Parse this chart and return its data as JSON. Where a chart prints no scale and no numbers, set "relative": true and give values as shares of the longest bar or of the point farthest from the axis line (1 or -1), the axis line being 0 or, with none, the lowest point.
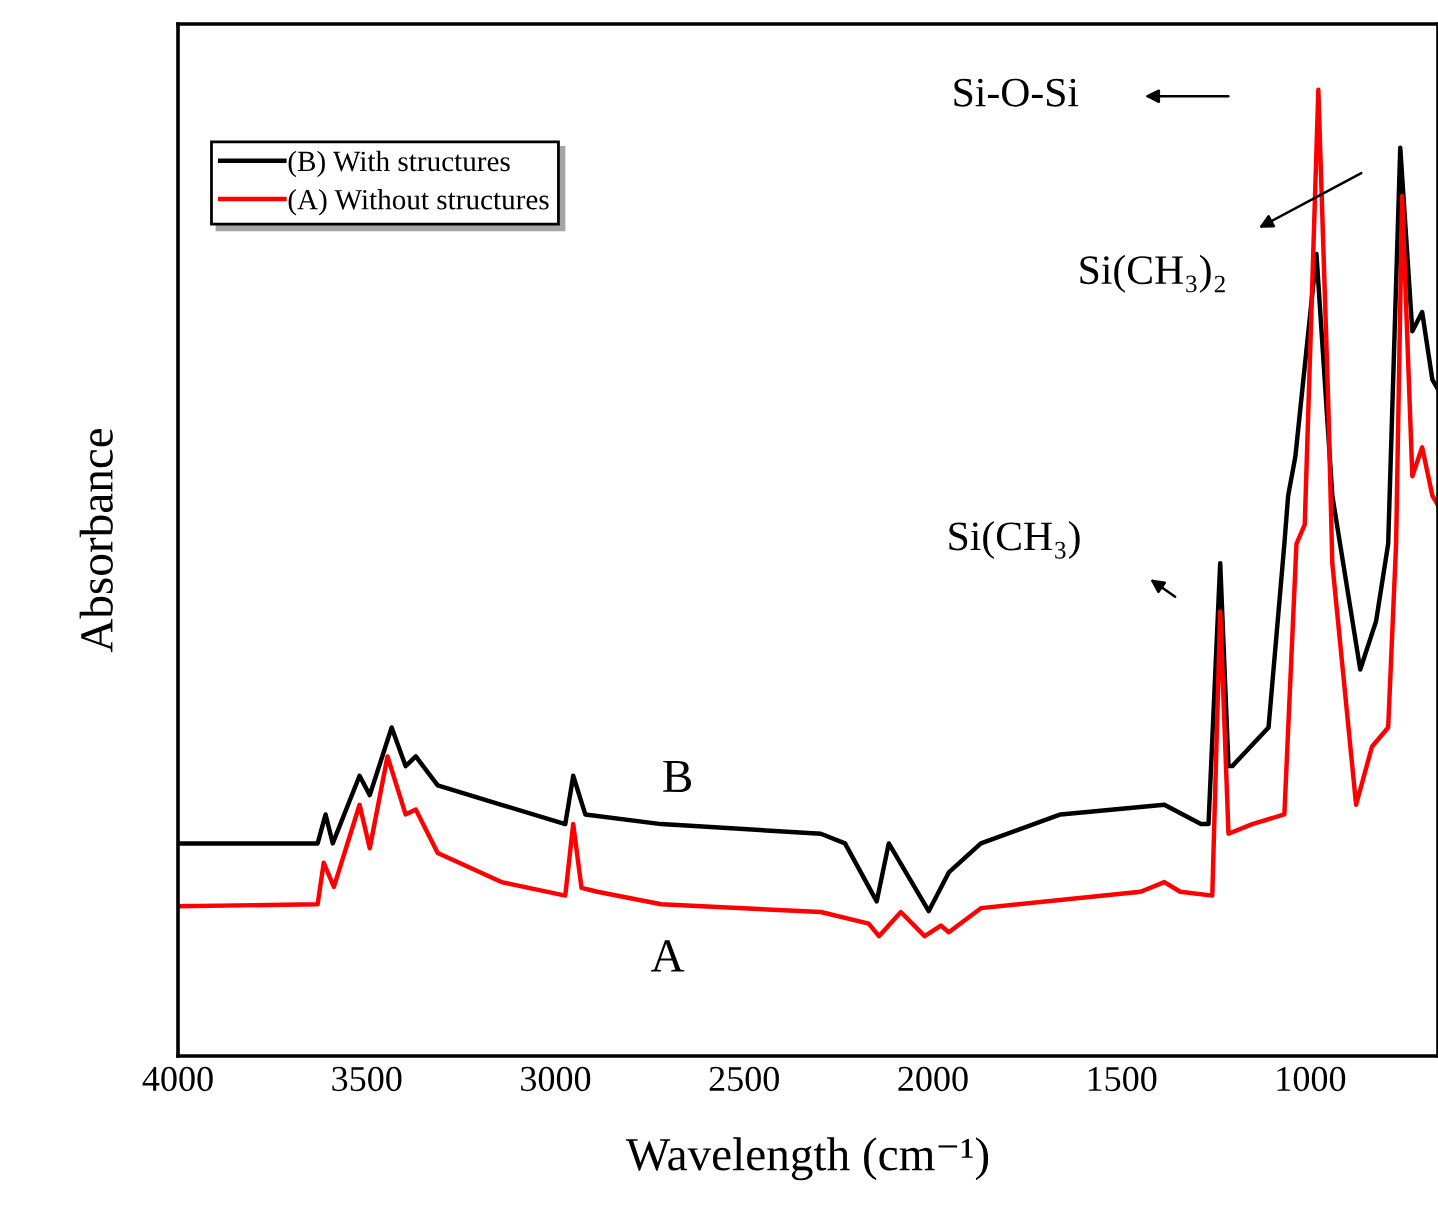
{
  "chart_data": {
    "type": "line",
    "relative": true,
    "xlabel": "Wavelength (cm⁻¹)",
    "ylabel": "Absorbance",
    "xlim": [
      4000,
      662
    ],
    "xticks": [
      4000,
      3500,
      3000,
      2500,
      2000,
      1500,
      1000
    ],
    "legend": "top left",
    "grid": false,
    "marker": "none",
    "line_style": "solid",
    "annotations": [
      "Si-O-Si",
      "Si(CH₃)₂",
      "Si(CH₃)",
      "B",
      "A"
    ],
    "series": [
      {
        "name": "(B) With structures",
        "color": "#000000",
        "x": [
          4000,
          3630,
          3609,
          3590,
          3519,
          3492,
          3434,
          3397,
          3370,
          3312,
          3143,
          2974,
          2953,
          2921,
          2720,
          2297,
          2233,
          2149,
          2117,
          2011,
          1958,
          1873,
          1662,
          1387,
          1290,
          1270,
          1239,
          1217,
          1207,
          1111,
          1069,
          1059,
          1040,
          984,
          942,
          868,
          826,
          794,
          762,
          730,
          704,
          677,
          662
        ],
        "values": [
          0.22,
          0.22,
          0.25,
          0.22,
          0.29,
          0.27,
          0.34,
          0.3,
          0.31,
          0.28,
          0.26,
          0.24,
          0.29,
          0.25,
          0.24,
          0.23,
          0.22,
          0.16,
          0.22,
          0.15,
          0.19,
          0.22,
          0.25,
          0.26,
          0.24,
          0.24,
          0.51,
          0.3,
          0.3,
          0.34,
          0.53,
          0.58,
          0.62,
          0.83,
          0.58,
          0.4,
          0.45,
          0.53,
          0.94,
          0.75,
          0.77,
          0.7,
          0.69
        ]
      },
      {
        "name": "(A) Without structures",
        "color": "#ff0000",
        "x": [
          4000,
          3630,
          3614,
          3587,
          3519,
          3492,
          3445,
          3397,
          3370,
          3312,
          3143,
          2974,
          2953,
          2931,
          2889,
          2720,
          2297,
          2170,
          2143,
          2085,
          2022,
          1979,
          1958,
          1873,
          1450,
          1387,
          1345,
          1260,
          1239,
          1217,
          1154,
          1069,
          1037,
          1015,
          979,
          953,
          942,
          879,
          837,
          794,
          773,
          757,
          730,
          704,
          677,
          662
        ],
        "values": [
          0.155,
          0.157,
          0.2,
          0.175,
          0.26,
          0.215,
          0.31,
          0.25,
          0.255,
          0.21,
          0.18,
          0.166,
          0.24,
          0.174,
          0.17,
          0.157,
          0.149,
          0.137,
          0.124,
          0.149,
          0.124,
          0.135,
          0.128,
          0.153,
          0.17,
          0.18,
          0.17,
          0.166,
          0.46,
          0.23,
          0.24,
          0.25,
          0.53,
          0.55,
          1.0,
          0.68,
          0.51,
          0.26,
          0.32,
          0.34,
          0.53,
          0.89,
          0.6,
          0.63,
          0.58,
          0.57
        ]
      }
    ]
  }
}
